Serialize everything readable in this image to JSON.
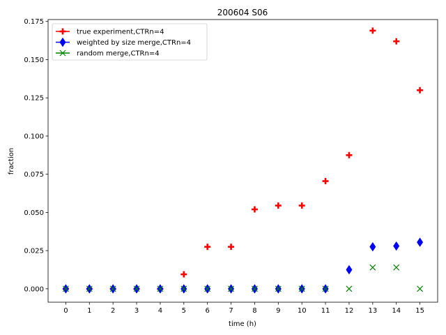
{
  "chart_data": {
    "type": "scatter",
    "title": "200604 S06",
    "xlabel": "time (h)",
    "ylabel": "fraction",
    "xlim": [
      -0.75,
      15.75
    ],
    "ylim": [
      -0.00875,
      0.17625
    ],
    "xticks": [
      0,
      1,
      2,
      3,
      4,
      5,
      6,
      7,
      8,
      9,
      10,
      11,
      12,
      13,
      14,
      15
    ],
    "xtick_labels": [
      "0",
      "1",
      "2",
      "3",
      "4",
      "5",
      "6",
      "7",
      "8",
      "9",
      "10",
      "11",
      "12",
      "13",
      "14",
      "15"
    ],
    "yticks": [
      0.0,
      0.025,
      0.05,
      0.075,
      0.1,
      0.125,
      0.15,
      0.175
    ],
    "ytick_labels": [
      "0.000",
      "0.025",
      "0.050",
      "0.075",
      "0.100",
      "0.125",
      "0.150",
      "0.175"
    ],
    "grid": false,
    "legend_position": "top-left",
    "x": [
      0,
      1,
      2,
      3,
      4,
      5,
      6,
      7,
      8,
      9,
      10,
      11,
      12,
      13,
      14,
      15
    ],
    "series": [
      {
        "name": "true experiment,CTRn=4",
        "marker": "plus",
        "color": "#ff0000",
        "values": [
          0,
          0,
          0,
          0,
          0,
          0.0095,
          0.0275,
          0.0275,
          0.052,
          0.0545,
          0.0545,
          0.0705,
          0.0875,
          0.169,
          0.162,
          0.13
        ]
      },
      {
        "name": "weighted by size merge,CTRn=4",
        "marker": "diamond",
        "color": "#0000ff",
        "values": [
          0,
          0,
          0,
          0,
          0,
          0,
          0,
          0,
          0,
          0,
          0,
          0,
          0.0125,
          0.0275,
          0.028,
          0.0305
        ]
      },
      {
        "name": "random merge,CTRn=4",
        "marker": "x",
        "color": "#008000",
        "values": [
          0,
          0,
          0,
          0,
          0,
          0,
          0,
          0,
          0,
          0,
          0,
          0,
          0,
          0.014,
          0.014,
          0
        ]
      }
    ]
  }
}
